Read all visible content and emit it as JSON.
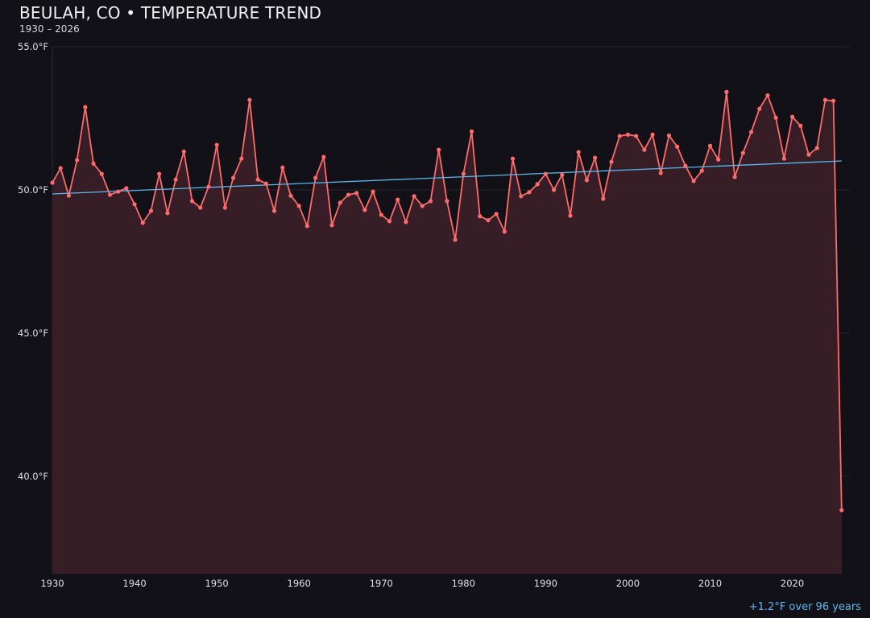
{
  "title": "BEULAH, CO • TEMPERATURE TREND",
  "subtitle": "1930 – 2026",
  "trend_note": "+1.2°F over 96 years",
  "colors": {
    "background": "#121117",
    "line": "#ff6b6b",
    "fill": "#3a1f26",
    "trend": "#5ab8f0",
    "grid": "#2a2228"
  },
  "chart_data": {
    "type": "area",
    "title": "BEULAH, CO • TEMPERATURE TREND",
    "xlabel": "",
    "ylabel": "",
    "xlim": [
      1930,
      2027
    ],
    "ylim": [
      36.6,
      55.0
    ],
    "grid": true,
    "x_ticks": [
      1930,
      1940,
      1950,
      1960,
      1970,
      1980,
      1990,
      2000,
      2010,
      2020
    ],
    "x_tick_labels": [
      "1930",
      "1940",
      "1950",
      "1960",
      "1970",
      "1980",
      "1990",
      "2000",
      "2010",
      "2020"
    ],
    "y_ticks": [
      40,
      45,
      50,
      55
    ],
    "y_tick_labels": [
      "40.0°F",
      "45.0°F",
      "50.0°F",
      "55.0°F"
    ],
    "x_start": 1930,
    "values": [
      50.25,
      50.76,
      49.8,
      51.04,
      52.89,
      50.92,
      50.56,
      49.83,
      49.94,
      50.06,
      49.5,
      48.85,
      49.27,
      50.56,
      49.19,
      50.36,
      51.34,
      49.61,
      49.38,
      50.11,
      51.57,
      49.38,
      50.42,
      51.09,
      53.14,
      50.36,
      50.22,
      49.27,
      50.78,
      49.8,
      49.44,
      48.74,
      50.42,
      51.15,
      48.77,
      49.55,
      49.83,
      49.89,
      49.3,
      49.94,
      49.13,
      48.91,
      49.66,
      48.88,
      49.78,
      49.44,
      49.61,
      51.4,
      49.61,
      48.26,
      50.56,
      52.04,
      49.08,
      48.94,
      49.16,
      48.54,
      51.09,
      49.78,
      49.92,
      50.2,
      50.56,
      50.0,
      50.53,
      49.1,
      51.32,
      50.34,
      51.12,
      49.69,
      50.98,
      51.88,
      51.93,
      51.88,
      51.4,
      51.93,
      50.59,
      51.9,
      51.51,
      50.84,
      50.31,
      50.67,
      51.54,
      51.06,
      53.42,
      50.45,
      51.29,
      52.02,
      52.83,
      53.3,
      52.52,
      51.09,
      52.55,
      52.24,
      51.23,
      51.46,
      53.14,
      53.11,
      38.82
    ],
    "trend": {
      "x": [
        1930,
        2026
      ],
      "y": [
        49.86,
        51.01
      ]
    }
  }
}
